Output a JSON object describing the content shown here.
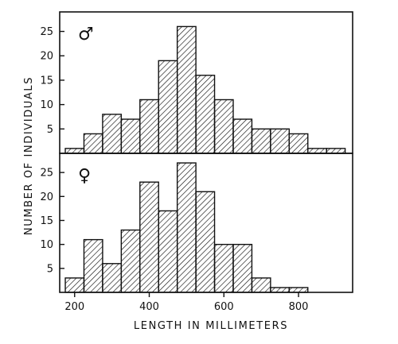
{
  "chart_data": [
    {
      "type": "bar",
      "panel_label": "♂",
      "x_unit_note": "bins of 50 mm",
      "bin_starts": [
        175,
        225,
        275,
        325,
        375,
        425,
        475,
        525,
        575,
        625,
        675,
        725,
        775,
        825,
        875
      ],
      "bin_width": 50,
      "values": [
        1,
        4,
        8,
        7,
        11,
        19,
        26,
        16,
        11,
        7,
        5,
        5,
        4,
        1,
        1
      ],
      "yticks": [
        5,
        10,
        15,
        20,
        25
      ],
      "ylim": [
        0,
        29
      ],
      "xlim": [
        160,
        945
      ]
    },
    {
      "type": "bar",
      "panel_label": "♀",
      "bin_starts": [
        175,
        225,
        275,
        325,
        375,
        425,
        475,
        525,
        575,
        625,
        675,
        725,
        775
      ],
      "bin_width": 50,
      "values": [
        3,
        11,
        6,
        13,
        23,
        17,
        27,
        21,
        10,
        10,
        3,
        1,
        1
      ],
      "yticks": [
        5,
        10,
        15,
        20,
        25
      ],
      "ylim": [
        0,
        29
      ],
      "xlim": [
        160,
        945
      ]
    }
  ],
  "xticks": [
    200,
    400,
    600,
    800
  ],
  "xlabel": "LENGTH IN MILLIMETERS",
  "ylabel": "NUMBER OF INDIVIDUALS",
  "colors": {
    "ink": "#111111",
    "background": "#ffffff"
  }
}
